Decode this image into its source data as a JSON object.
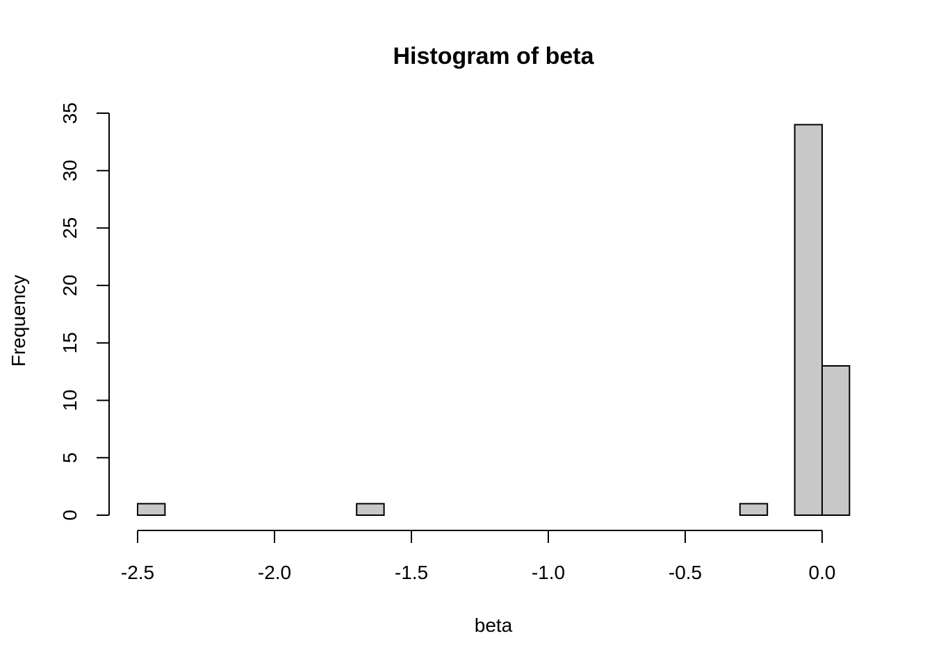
{
  "chart_data": {
    "type": "histogram",
    "title": "Histogram of beta",
    "x_label": "beta",
    "y_label": "Frequency",
    "bins": [
      -2.5,
      -2.4,
      -2.3,
      -2.2,
      -2.1,
      -2.0,
      -1.9,
      -1.8,
      -1.7,
      -1.6,
      -1.5,
      -1.4,
      -1.3,
      -1.2,
      -1.1,
      -1.0,
      -0.9,
      -0.8,
      -0.7,
      -0.6,
      -0.5,
      -0.4,
      -0.3,
      -0.2,
      -0.1,
      0.0,
      0.1
    ],
    "values": [
      1,
      0,
      0,
      0,
      0,
      0,
      0,
      0,
      1,
      0,
      0,
      0,
      0,
      0,
      0,
      0,
      0,
      0,
      0,
      0,
      0,
      0,
      1,
      0,
      34,
      13
    ],
    "color": "#c8c8c8",
    "xlim": [
      -2.5,
      0.1
    ],
    "xticks": [
      -2.5,
      {
        "value": -2.0,
        "label": "-2.0"
      },
      -1.5,
      {
        "value": -1.0,
        "label": "-1.0"
      },
      -0.5,
      {
        "value": 0.0,
        "label": "0.0"
      }
    ],
    "ylim": [
      0,
      35
    ],
    "yticks": [
      0,
      5,
      10,
      15,
      20,
      25,
      30,
      35
    ]
  }
}
